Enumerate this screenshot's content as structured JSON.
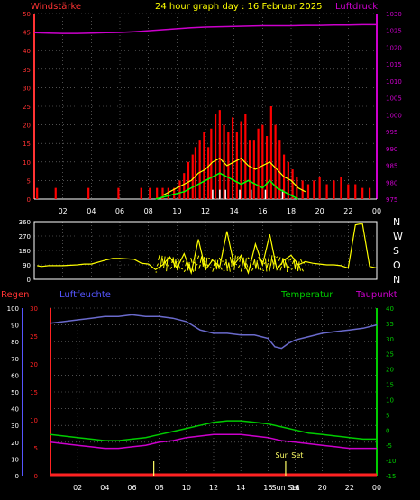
{
  "title": "24 hour graph day : 16 Februar 2025",
  "colors": {
    "background": "#000000",
    "grid": "#808080",
    "axis": "#ffffff",
    "wind_gust": "#ff0000",
    "wind_avg": "#ffff00",
    "wind_speed": "#00ff00",
    "wind_calm": "#ffffff",
    "pressure": "#cc00cc",
    "direction": "#ffff00",
    "humidity": "#6a6acc",
    "temperature": "#00cc00",
    "dewpoint": "#cc00cc",
    "rain": "#ff2222",
    "sun": "#ffff66",
    "left_axis_wind": "#ff3333",
    "left_axis_hum": "#5555ff",
    "right_axis_press": "#cc00cc",
    "right_axis_temp": "#00cc00"
  },
  "chart_data": [
    {
      "type": "line",
      "panel": "wind_pressure",
      "label_left": "Windstärke",
      "label_right": "Luftdruck",
      "x_ticks": [
        "02",
        "04",
        "06",
        "08",
        "10",
        "12",
        "14",
        "16",
        "18",
        "20",
        "22",
        "00"
      ],
      "xlim": [
        0,
        24
      ],
      "ylim_left": [
        0,
        50
      ],
      "ylim_right": [
        975,
        1030
      ],
      "y_ticks_left": [
        "0",
        "5",
        "10",
        "15",
        "20",
        "25",
        "30",
        "35",
        "40",
        "45",
        "50"
      ],
      "y_ticks_right": [
        "975",
        "980",
        "985",
        "990",
        "995",
        "1000",
        "1005",
        "1010",
        "1015",
        "1020",
        "1025",
        "1030"
      ],
      "series": [
        {
          "role": "pressure",
          "axis": "right",
          "x": [
            0,
            1,
            2,
            3,
            4,
            5,
            6,
            7,
            8,
            9,
            10,
            11,
            12,
            13,
            14,
            15,
            16,
            17,
            18,
            19,
            20,
            21,
            22,
            23,
            24
          ],
          "y": [
            1024.3,
            1024.2,
            1024.1,
            1024.1,
            1024.2,
            1024.3,
            1024.4,
            1024.6,
            1024.9,
            1025.2,
            1025.5,
            1025.8,
            1026.0,
            1026.1,
            1026.2,
            1026.3,
            1026.4,
            1026.4,
            1026.4,
            1026.5,
            1026.5,
            1026.6,
            1026.6,
            1026.7,
            1026.7
          ]
        },
        {
          "role": "gust",
          "axis": "left",
          "x": [
            0.2,
            1.5,
            3.8,
            5.9,
            7.5,
            8.1,
            8.6,
            9.0,
            9.4,
            9.8,
            10.2,
            10.5,
            10.8,
            11.1,
            11.3,
            11.6,
            11.9,
            12.2,
            12.4,
            12.7,
            13.0,
            13.3,
            13.6,
            13.9,
            14.2,
            14.5,
            14.8,
            15.1,
            15.4,
            15.7,
            16.0,
            16.3,
            16.6,
            16.9,
            17.2,
            17.5,
            17.8,
            18.1,
            18.4,
            18.8,
            19.2,
            19.6,
            20.0,
            20.5,
            21.0,
            21.5,
            22.0,
            22.5,
            23.0,
            23.5
          ],
          "y": [
            3,
            3,
            3,
            3,
            3,
            3,
            3,
            3,
            3,
            3,
            5,
            7,
            10,
            12,
            14,
            16,
            18,
            14,
            19,
            23,
            24,
            20,
            18,
            22,
            18,
            21,
            23,
            16,
            16,
            19,
            20,
            17,
            25,
            20,
            16,
            12,
            10,
            8,
            6,
            5,
            4,
            5,
            6,
            4,
            5,
            6,
            4,
            4,
            3,
            3
          ]
        },
        {
          "role": "average",
          "axis": "left",
          "x": [
            9.0,
            9.5,
            10.0,
            10.5,
            11.0,
            11.5,
            12.0,
            12.5,
            13.0,
            13.5,
            14.0,
            14.5,
            15.0,
            15.5,
            16.0,
            16.5,
            17.0,
            17.5,
            18.0,
            18.5,
            19.0
          ],
          "y": [
            1,
            2,
            3,
            4,
            5,
            7,
            8,
            10,
            11,
            9,
            10,
            11,
            9,
            8,
            9,
            10,
            8,
            6,
            5,
            3,
            2
          ]
        },
        {
          "role": "speed",
          "axis": "left",
          "x": [
            8.5,
            9.0,
            9.5,
            10.0,
            10.5,
            11.0,
            11.5,
            12.0,
            12.5,
            13.0,
            13.5,
            14.0,
            14.5,
            15.0,
            15.5,
            16.0,
            16.5,
            17.0,
            17.5,
            18.0,
            18.5
          ],
          "y": [
            0,
            0.5,
            1,
            1.5,
            2,
            3,
            4,
            5,
            6,
            7,
            6,
            5,
            4,
            5,
            4,
            3,
            5,
            3,
            2,
            1,
            0
          ]
        }
      ]
    },
    {
      "type": "line",
      "panel": "direction",
      "y_ticks_left": [
        "0",
        "90",
        "180",
        "270",
        "360"
      ],
      "ylim": [
        0,
        360
      ],
      "direction_labels": [
        "N",
        "W",
        "S",
        "O",
        "N"
      ],
      "series": [
        {
          "role": "direction",
          "x": [
            0.2,
            0.5,
            1,
            2,
            3,
            3.5,
            4,
            5,
            5.5,
            6,
            7,
            7.5,
            8,
            8.5,
            9,
            9.5,
            10,
            10.5,
            11,
            11.5,
            12,
            12.5,
            13,
            13.5,
            14,
            14.5,
            15,
            15.5,
            16,
            16.5,
            17,
            17.5,
            18,
            18.5,
            19,
            19.5,
            20,
            20.5,
            21,
            21.5,
            22,
            22.5,
            22.8,
            23,
            23.5,
            24
          ],
          "y": [
            85,
            80,
            85,
            85,
            90,
            95,
            95,
            120,
            130,
            130,
            125,
            100,
            95,
            60,
            90,
            140,
            70,
            160,
            40,
            250,
            60,
            120,
            80,
            300,
            90,
            150,
            40,
            220,
            90,
            280,
            60,
            120,
            150,
            90,
            110,
            100,
            95,
            90,
            90,
            85,
            70,
            340,
            345,
            345,
            80,
            70
          ]
        }
      ]
    },
    {
      "type": "line",
      "panel": "climate",
      "label_regen": "Regen",
      "label_hum": "Luftfeuchte",
      "label_temp": "Temperatur",
      "label_dew": "Taupunkt",
      "y_ticks_hum": [
        "0",
        "10",
        "20",
        "30",
        "40",
        "50",
        "60",
        "70",
        "80",
        "90",
        "100"
      ],
      "y_ticks_rain": [
        "0",
        "5",
        "10",
        "15",
        "20",
        "25",
        "30"
      ],
      "y_ticks_temp": [
        "-15",
        "-10",
        "-5",
        "0",
        "5",
        "10",
        "15",
        "20",
        "25",
        "30",
        "35",
        "40"
      ],
      "ylim_hum": [
        0,
        100
      ],
      "ylim_temp": [
        -15,
        40
      ],
      "annotation_sunset": "Sun Set",
      "annotation_sunset_x": "Sun Set",
      "series": [
        {
          "role": "humidity",
          "x": [
            0,
            1,
            2,
            3,
            4,
            5,
            6,
            7,
            8,
            9,
            10,
            11,
            12,
            13,
            14,
            15,
            16,
            16.5,
            17,
            17.5,
            18,
            19,
            20,
            21,
            22,
            23,
            24
          ],
          "y": [
            91,
            92,
            93,
            94,
            95,
            95,
            96,
            95,
            95,
            94,
            92,
            87,
            85,
            85,
            84,
            84,
            82,
            77,
            76,
            79,
            81,
            83,
            85,
            86,
            87,
            88,
            90
          ]
        },
        {
          "role": "temperature",
          "x": [
            0,
            1,
            2,
            3,
            4,
            5,
            6,
            7,
            8,
            9,
            10,
            11,
            12,
            13,
            14,
            15,
            16,
            17,
            18,
            19,
            20,
            21,
            22,
            23,
            24
          ],
          "y": [
            -1.5,
            -2,
            -2.5,
            -3,
            -3.5,
            -3.5,
            -3,
            -2.5,
            -1.5,
            -0.5,
            0.5,
            1.5,
            2.5,
            3,
            3,
            2.5,
            2,
            1,
            0,
            -1,
            -1.5,
            -2,
            -2.5,
            -3,
            -3
          ]
        },
        {
          "role": "dewpoint",
          "x": [
            0,
            1,
            2,
            3,
            4,
            5,
            6,
            7,
            8,
            9,
            10,
            11,
            12,
            13,
            14,
            15,
            16,
            17,
            18,
            19,
            20,
            21,
            22,
            23,
            24
          ],
          "y": [
            -4,
            -4.5,
            -5,
            -5.5,
            -6,
            -6,
            -5.5,
            -5,
            -4,
            -3.5,
            -2.5,
            -2,
            -1.5,
            -1.5,
            -1.5,
            -2,
            -2.5,
            -3.5,
            -4,
            -4.5,
            -5,
            -5.5,
            -6,
            -6,
            -6
          ]
        },
        {
          "role": "rain",
          "x": [
            0,
            24
          ],
          "y": [
            0,
            0
          ]
        }
      ]
    }
  ]
}
